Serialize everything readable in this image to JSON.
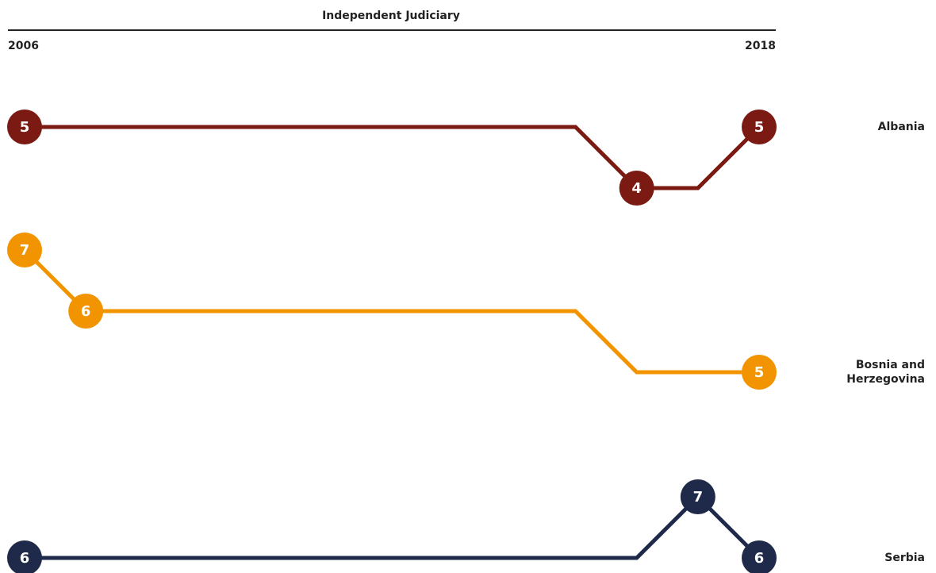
{
  "chart_data": {
    "type": "line",
    "title": "Independent Judiciary",
    "x": [
      2006,
      2007,
      2008,
      2009,
      2010,
      2011,
      2012,
      2013,
      2014,
      2015,
      2016,
      2017,
      2018
    ],
    "xlim": [
      2006,
      2018
    ],
    "xticks": [
      2006,
      2018
    ],
    "series": [
      {
        "name": "Albania",
        "color": "#7b1a12",
        "values": [
          5,
          5,
          5,
          5,
          5,
          5,
          5,
          5,
          5,
          5,
          4,
          4,
          5
        ],
        "ylim": [
          4,
          5
        ],
        "labels_at": [
          0,
          10,
          12
        ]
      },
      {
        "name": "Bosnia and Herzegovina",
        "color": "#f29400",
        "values": [
          7,
          6,
          6,
          6,
          6,
          6,
          6,
          6,
          6,
          6,
          5,
          5,
          5
        ],
        "ylim": [
          5,
          7
        ],
        "labels_at": [
          0,
          1,
          12
        ]
      },
      {
        "name": "Serbia",
        "color": "#1f2a4a",
        "values": [
          6,
          6,
          6,
          6,
          6,
          6,
          6,
          6,
          6,
          6,
          6,
          7,
          6
        ],
        "ylim": [
          6,
          7
        ],
        "labels_at": [
          0,
          11,
          12
        ]
      }
    ]
  }
}
